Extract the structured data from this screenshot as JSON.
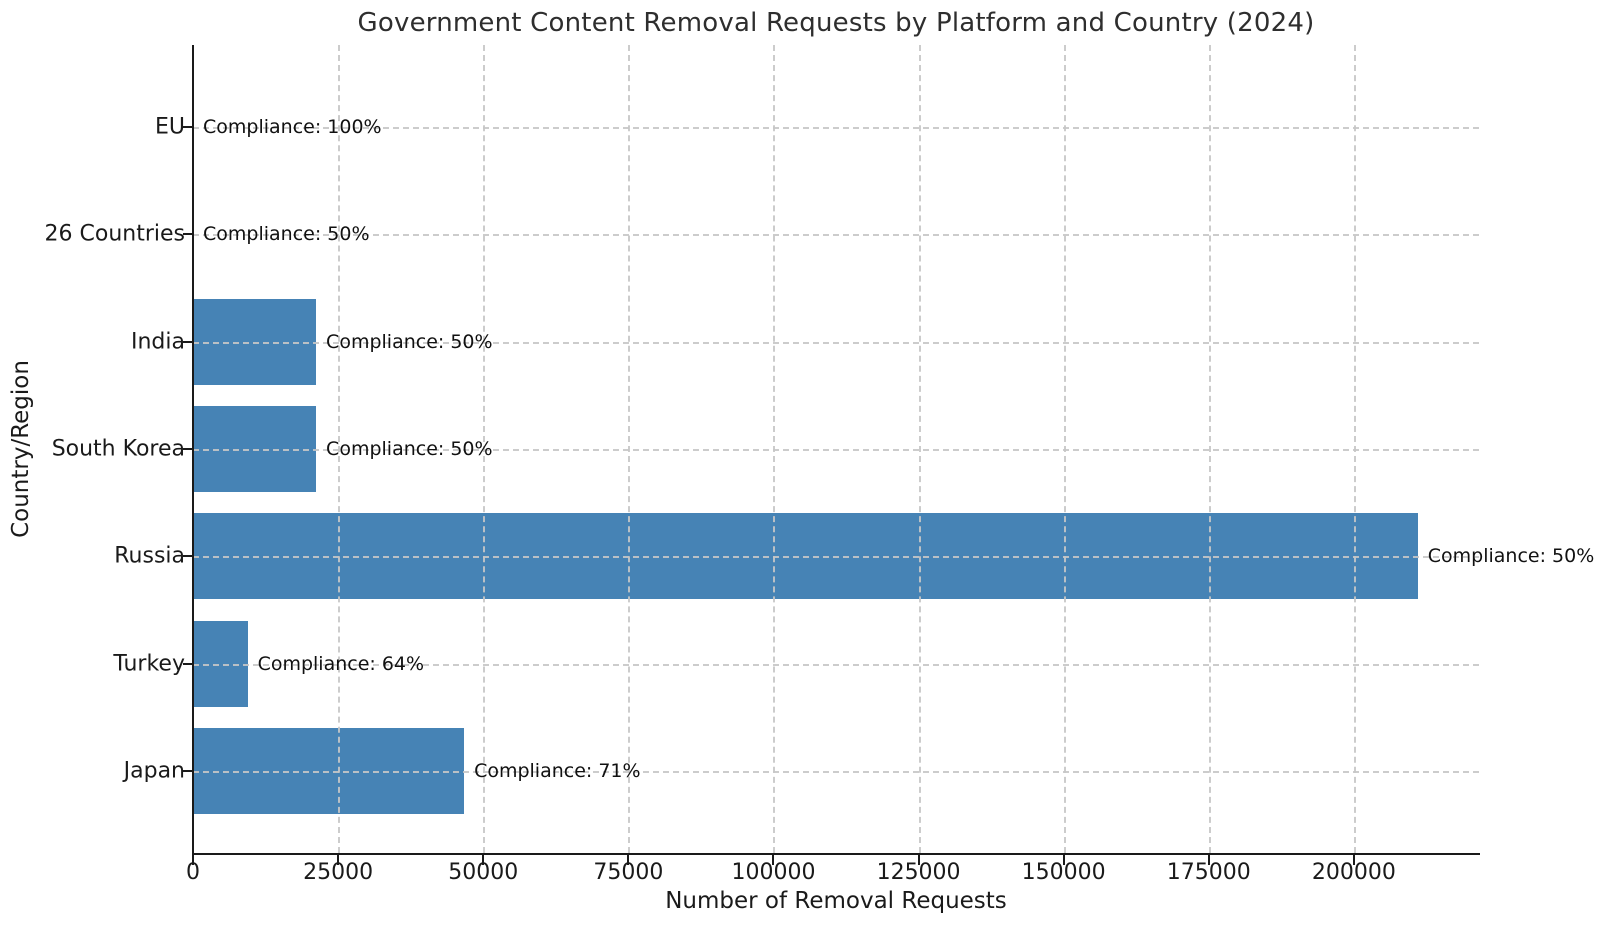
{
  "chart_data": {
    "type": "bar",
    "orientation": "horizontal",
    "title": "Government Content Removal Requests by Platform and Country (2024)",
    "xlabel": "Number of Removal Requests",
    "ylabel": "Country/Region",
    "categories": [
      "EU",
      "26 Countries",
      "India",
      "South Korea",
      "Russia",
      "Turkey",
      "Japan"
    ],
    "values": [
      0,
      0,
      21200,
      21200,
      211000,
      9400,
      46700
    ],
    "annotations": [
      "Compliance: 100%",
      "Compliance: 50%",
      "Compliance: 50%",
      "Compliance: 50%",
      "Compliance: 50%",
      "Compliance: 64%",
      "Compliance: 71%"
    ],
    "compliance_pct": [
      100,
      50,
      50,
      50,
      50,
      64,
      71
    ],
    "xticks": [
      0,
      25000,
      50000,
      75000,
      100000,
      125000,
      150000,
      175000,
      200000
    ],
    "xtick_labels": [
      "0",
      "25000",
      "50000",
      "75000",
      "100000",
      "125000",
      "150000",
      "175000",
      "200000"
    ],
    "xlim": [
      0,
      221550
    ],
    "bar_color": "#4683b5",
    "grid_color": "#c7c7c7",
    "axis_color": "#1a1a1a",
    "grid": true,
    "grid_style": "dashed",
    "legend": false
  }
}
